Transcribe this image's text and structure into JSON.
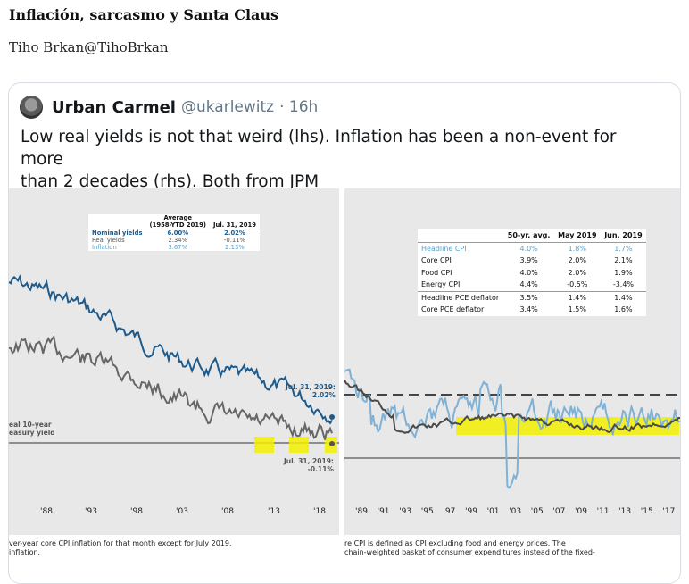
{
  "page": {
    "title": "Inflación, sarcasmo y Santa Claus",
    "byline": "Tiho Brkan@TihoBrkan"
  },
  "tweet": {
    "author_name": "Urban Carmel",
    "author_handle": "@ukarlewitz",
    "time": "· 16h",
    "text_line1": "Low real yields is not that weird (lhs). Inflation has been a non-event for more",
    "text_line2": "than 2 decades (rhs). Both from JPM"
  },
  "left_chart": {
    "table": {
      "headers": [
        "",
        "Average",
        "Jul. 31, 2019"
      ],
      "subheader": "(1958-YTD 2019)",
      "rows": [
        {
          "label": "Nominal yields",
          "avg": "6.00%",
          "jul": "2.02%",
          "color": "#1e5a8a"
        },
        {
          "label": "Real yields",
          "avg": "2.34%",
          "jul": "-0.11%",
          "color": "#555555"
        },
        {
          "label": "Inflation",
          "avg": "3.67%",
          "jul": "2.13%",
          "color": "#5aa0c8"
        }
      ]
    },
    "annotation_top": "Jul. 31, 2019:",
    "annotation_top_val": "2.02%",
    "annotation_bottom": "Jul. 31, 2019:",
    "annotation_bottom_val": "-0.11%",
    "side_label_1": "eal 10-year",
    "side_label_2": "easury yield",
    "x_ticks": [
      "'88",
      "'93",
      "'98",
      "'03",
      "'08",
      "'13",
      "'18"
    ],
    "footnote_1": "ver-year core CPI inflation for that month except for July 2019,",
    "footnote_2": "inflation."
  },
  "right_chart": {
    "table": {
      "headers": [
        "",
        "50-yr. avg.",
        "May 2019",
        "Jun. 2019"
      ],
      "rows": [
        {
          "label": "Headline CPI",
          "a": "4.0%",
          "b": "1.8%",
          "c": "1.7%",
          "color": "#5aa0c8"
        },
        {
          "label": "Core CPI",
          "a": "3.9%",
          "b": "2.0%",
          "c": "2.1%",
          "color": "#222222"
        },
        {
          "label": "Food CPI",
          "a": "4.0%",
          "b": "2.0%",
          "c": "1.9%",
          "color": "#222222"
        },
        {
          "label": "Energy CPI",
          "a": "4.4%",
          "b": "-0.5%",
          "c": "-3.4%",
          "color": "#222222"
        },
        {
          "label": "Headline PCE deflator",
          "a": "3.5%",
          "b": "1.4%",
          "c": "1.4%",
          "color": "#222222"
        },
        {
          "label": "Core PCE deflator",
          "a": "3.4%",
          "b": "1.5%",
          "c": "1.6%",
          "color": "#222222"
        }
      ]
    },
    "x_ticks": [
      "'89",
      "'91",
      "'93",
      "'95",
      "'97",
      "'99",
      "'01",
      "'03",
      "'05",
      "'07",
      "'09",
      "'11",
      "'13",
      "'15",
      "'17"
    ],
    "footnote_1": "re CPI is defined as CPI excluding food and energy prices. The",
    "footnote_2": "chain-weighted basket of consumer expenditures instead of the fixed-"
  },
  "colors": {
    "nominal": "#1e5a8a",
    "real": "#666666",
    "inflation_headline": "#7fb2d6",
    "core": "#4a4a4a",
    "highlight": "#f2f000"
  }
}
